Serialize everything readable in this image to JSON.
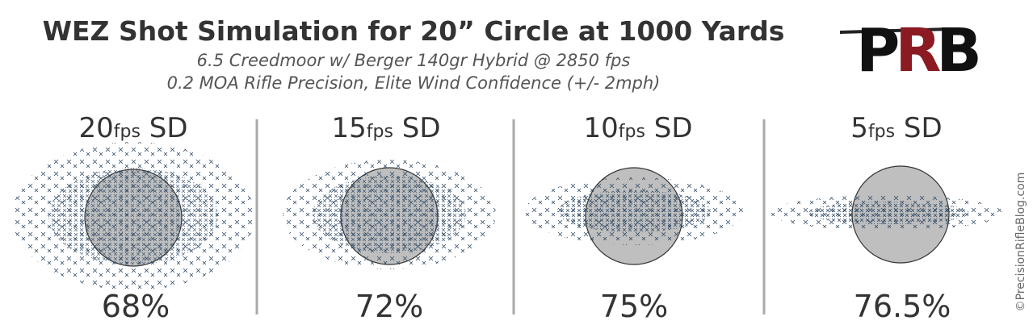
{
  "title": "WEZ Shot Simulation for 20” Circle at 1000 Yards",
  "subtitle": [
    "6.5 Creedmoor w/ Berger 140gr Hybrid @ 2850 fps",
    "0.2 MOA Rifle Precision, Elite Wind Confidence (+/- 2mph)"
  ],
  "logo": [
    "P",
    "R",
    "B"
  ],
  "panels": [
    {
      "sd": "20",
      "unit": "fps",
      "label": "SD",
      "hit": "68%"
    },
    {
      "sd": "15",
      "unit": "fps",
      "label": "SD",
      "hit": "72%"
    },
    {
      "sd": "10",
      "unit": "fps",
      "label": "SD",
      "hit": "75%"
    },
    {
      "sd": "5",
      "unit": "fps",
      "label": "SD",
      "hit": "76.5%"
    }
  ],
  "copyright": "©PrecisionRifleBlog.com"
}
